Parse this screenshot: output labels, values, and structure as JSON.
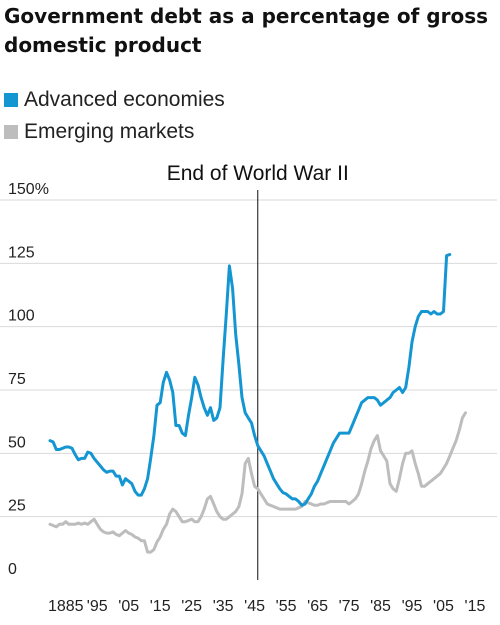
{
  "title": "Government debt as a percentage of gross domestic product",
  "legend": [
    {
      "label": "Advanced economies",
      "color": "#1496d2"
    },
    {
      "label": "Emerging markets",
      "color": "#bdbdbd"
    }
  ],
  "annotation": {
    "text": "End of World War II",
    "x": 1946
  },
  "chart_data": {
    "type": "line",
    "xlim": [
      1880,
      2022
    ],
    "ylim": [
      0,
      150
    ],
    "y_ticks": [
      {
        "value": 0,
        "label": "0"
      },
      {
        "value": 25,
        "label": "25"
      },
      {
        "value": 50,
        "label": "50"
      },
      {
        "value": 75,
        "label": "75"
      },
      {
        "value": 100,
        "label": "100"
      },
      {
        "value": 125,
        "label": "125"
      },
      {
        "value": 150,
        "label": "150%"
      }
    ],
    "x_ticks": [
      {
        "value": 1885,
        "label": "1885"
      },
      {
        "value": 1895,
        "label": "'95"
      },
      {
        "value": 1905,
        "label": "'05"
      },
      {
        "value": 1915,
        "label": "'15"
      },
      {
        "value": 1925,
        "label": "'25"
      },
      {
        "value": 1935,
        "label": "'35"
      },
      {
        "value": 1945,
        "label": "'45"
      },
      {
        "value": 1955,
        "label": "'55"
      },
      {
        "value": 1965,
        "label": "'65"
      },
      {
        "value": 1975,
        "label": "'75"
      },
      {
        "value": 1985,
        "label": "'85"
      },
      {
        "value": 1995,
        "label": "'95"
      },
      {
        "value": 2005,
        "label": "'05"
      },
      {
        "value": 2015,
        "label": "'15"
      }
    ],
    "grid": "horizontal",
    "series": [
      {
        "name": "Advanced economies",
        "color": "#1496d2",
        "points": [
          [
            1880,
            55
          ],
          [
            1881,
            54.5
          ],
          [
            1882,
            51.5
          ],
          [
            1883,
            51.5
          ],
          [
            1884,
            52
          ],
          [
            1885,
            52.5
          ],
          [
            1886,
            52.5
          ],
          [
            1887,
            52
          ],
          [
            1888,
            49.5
          ],
          [
            1889,
            47.5
          ],
          [
            1890,
            48
          ],
          [
            1891,
            48
          ],
          [
            1892,
            50.5
          ],
          [
            1893,
            50
          ],
          [
            1894,
            48
          ],
          [
            1895,
            46.5
          ],
          [
            1896,
            45
          ],
          [
            1897,
            43.5
          ],
          [
            1898,
            42.5
          ],
          [
            1899,
            43
          ],
          [
            1900,
            43
          ],
          [
            1901,
            41
          ],
          [
            1902,
            41
          ],
          [
            1903,
            37.5
          ],
          [
            1904,
            40
          ],
          [
            1905,
            39
          ],
          [
            1906,
            38
          ],
          [
            1907,
            35
          ],
          [
            1908,
            33.5
          ],
          [
            1909,
            33.5
          ],
          [
            1910,
            36
          ],
          [
            1911,
            40
          ],
          [
            1912,
            48
          ],
          [
            1913,
            57
          ],
          [
            1914,
            69
          ],
          [
            1915,
            70
          ],
          [
            1916,
            78
          ],
          [
            1917,
            82
          ],
          [
            1918,
            79
          ],
          [
            1919,
            74
          ],
          [
            1920,
            61
          ],
          [
            1921,
            61
          ],
          [
            1922,
            58
          ],
          [
            1923,
            57
          ],
          [
            1924,
            65
          ],
          [
            1925,
            72
          ],
          [
            1926,
            80
          ],
          [
            1927,
            77
          ],
          [
            1928,
            72
          ],
          [
            1929,
            68
          ],
          [
            1930,
            65
          ],
          [
            1931,
            68
          ],
          [
            1932,
            63
          ],
          [
            1933,
            64
          ],
          [
            1934,
            68
          ],
          [
            1935,
            87
          ],
          [
            1936,
            105
          ],
          [
            1937,
            124
          ],
          [
            1938,
            115
          ],
          [
            1939,
            97
          ],
          [
            1940,
            85
          ],
          [
            1941,
            72
          ],
          [
            1942,
            66
          ],
          [
            1943,
            64
          ],
          [
            1944,
            62
          ],
          [
            1945,
            57
          ],
          [
            1946,
            53
          ],
          [
            1947,
            51
          ],
          [
            1948,
            49
          ],
          [
            1949,
            46
          ],
          [
            1950,
            43
          ],
          [
            1951,
            40
          ],
          [
            1952,
            38
          ],
          [
            1953,
            36
          ],
          [
            1954,
            34.5
          ],
          [
            1955,
            34
          ],
          [
            1956,
            33
          ],
          [
            1957,
            32
          ],
          [
            1958,
            32
          ],
          [
            1959,
            31
          ],
          [
            1960,
            29.5
          ],
          [
            1961,
            30
          ],
          [
            1962,
            32
          ],
          [
            1963,
            34
          ],
          [
            1964,
            37
          ],
          [
            1965,
            39
          ],
          [
            1966,
            42
          ],
          [
            1967,
            45
          ],
          [
            1968,
            48
          ],
          [
            1969,
            51
          ],
          [
            1970,
            54
          ],
          [
            1971,
            56
          ],
          [
            1972,
            58
          ],
          [
            1973,
            58
          ],
          [
            1974,
            58
          ],
          [
            1975,
            58
          ],
          [
            1976,
            61
          ],
          [
            1977,
            64
          ],
          [
            1978,
            67
          ],
          [
            1979,
            70
          ],
          [
            1980,
            71
          ],
          [
            1981,
            72
          ],
          [
            1982,
            72
          ],
          [
            1983,
            72
          ],
          [
            1984,
            71
          ],
          [
            1985,
            69
          ],
          [
            1986,
            70
          ],
          [
            1987,
            71
          ],
          [
            1988,
            72
          ],
          [
            1989,
            74
          ],
          [
            1990,
            75
          ],
          [
            1991,
            76
          ],
          [
            1992,
            74
          ],
          [
            1993,
            76
          ],
          [
            1994,
            84
          ],
          [
            1995,
            94
          ],
          [
            1996,
            100
          ],
          [
            1997,
            104
          ],
          [
            1998,
            106
          ],
          [
            1999,
            106
          ],
          [
            2000,
            106
          ],
          [
            2001,
            105
          ],
          [
            2002,
            106
          ],
          [
            2003,
            105
          ],
          [
            2004,
            105
          ],
          [
            2005,
            106
          ],
          [
            2006,
            128
          ],
          [
            2007,
            128.5
          ]
        ]
      },
      {
        "name": "Emerging markets",
        "color": "#bdbdbd",
        "points": [
          [
            1880,
            22
          ],
          [
            1881,
            21.5
          ],
          [
            1882,
            21
          ],
          [
            1883,
            22
          ],
          [
            1884,
            22
          ],
          [
            1885,
            23
          ],
          [
            1886,
            22
          ],
          [
            1887,
            22
          ],
          [
            1888,
            22
          ],
          [
            1889,
            22.5
          ],
          [
            1890,
            22
          ],
          [
            1891,
            22.5
          ],
          [
            1892,
            22
          ],
          [
            1893,
            23
          ],
          [
            1894,
            24
          ],
          [
            1895,
            22
          ],
          [
            1896,
            20
          ],
          [
            1897,
            19
          ],
          [
            1898,
            18.5
          ],
          [
            1899,
            18.5
          ],
          [
            1900,
            19
          ],
          [
            1901,
            18
          ],
          [
            1902,
            17.5
          ],
          [
            1903,
            18.5
          ],
          [
            1904,
            19.5
          ],
          [
            1905,
            18.5
          ],
          [
            1906,
            18
          ],
          [
            1907,
            17
          ],
          [
            1908,
            16.5
          ],
          [
            1909,
            15.5
          ],
          [
            1910,
            15.5
          ],
          [
            1911,
            11
          ],
          [
            1912,
            11
          ],
          [
            1913,
            12
          ],
          [
            1914,
            15
          ],
          [
            1915,
            17
          ],
          [
            1916,
            20
          ],
          [
            1917,
            22
          ],
          [
            1918,
            26
          ],
          [
            1919,
            28
          ],
          [
            1920,
            27
          ],
          [
            1921,
            25
          ],
          [
            1922,
            23
          ],
          [
            1923,
            23
          ],
          [
            1924,
            23.5
          ],
          [
            1925,
            24
          ],
          [
            1926,
            23
          ],
          [
            1927,
            23
          ],
          [
            1928,
            25
          ],
          [
            1929,
            28
          ],
          [
            1930,
            32
          ],
          [
            1931,
            33
          ],
          [
            1932,
            30
          ],
          [
            1933,
            27
          ],
          [
            1934,
            25
          ],
          [
            1935,
            24
          ],
          [
            1936,
            24
          ],
          [
            1937,
            25
          ],
          [
            1938,
            26
          ],
          [
            1939,
            27
          ],
          [
            1940,
            29
          ],
          [
            1941,
            34
          ],
          [
            1942,
            46
          ],
          [
            1943,
            48
          ],
          [
            1944,
            42
          ],
          [
            1945,
            37
          ],
          [
            1946,
            36
          ],
          [
            1947,
            34
          ],
          [
            1948,
            32
          ],
          [
            1949,
            30
          ],
          [
            1950,
            29.5
          ],
          [
            1951,
            29
          ],
          [
            1952,
            28.5
          ],
          [
            1953,
            28
          ],
          [
            1954,
            28
          ],
          [
            1955,
            28
          ],
          [
            1956,
            28
          ],
          [
            1957,
            28
          ],
          [
            1958,
            28
          ],
          [
            1959,
            28.5
          ],
          [
            1960,
            29
          ],
          [
            1961,
            31
          ],
          [
            1962,
            30.5
          ],
          [
            1963,
            30
          ],
          [
            1964,
            29.5
          ],
          [
            1965,
            29.5
          ],
          [
            1966,
            30
          ],
          [
            1967,
            30
          ],
          [
            1968,
            30.5
          ],
          [
            1969,
            31
          ],
          [
            1970,
            31
          ],
          [
            1971,
            31
          ],
          [
            1972,
            31
          ],
          [
            1973,
            31
          ],
          [
            1974,
            31
          ],
          [
            1975,
            30
          ],
          [
            1976,
            31
          ],
          [
            1977,
            32
          ],
          [
            1978,
            34
          ],
          [
            1979,
            38
          ],
          [
            1980,
            43
          ],
          [
            1981,
            47
          ],
          [
            1982,
            52
          ],
          [
            1983,
            55
          ],
          [
            1984,
            57
          ],
          [
            1985,
            51
          ],
          [
            1986,
            49
          ],
          [
            1987,
            47
          ],
          [
            1988,
            38
          ],
          [
            1989,
            36
          ],
          [
            1990,
            35
          ],
          [
            1991,
            40
          ],
          [
            1992,
            46
          ],
          [
            1993,
            50
          ],
          [
            1994,
            50
          ],
          [
            1995,
            51
          ],
          [
            1996,
            46
          ],
          [
            1997,
            42
          ],
          [
            1998,
            37
          ],
          [
            1999,
            37
          ],
          [
            2000,
            38
          ],
          [
            2001,
            39
          ],
          [
            2002,
            40
          ],
          [
            2003,
            41
          ],
          [
            2004,
            42
          ],
          [
            2005,
            44
          ],
          [
            2006,
            46
          ],
          [
            2007,
            49
          ],
          [
            2008,
            52
          ],
          [
            2009,
            55
          ],
          [
            2010,
            59
          ],
          [
            2011,
            64
          ],
          [
            2012,
            66
          ]
        ]
      }
    ]
  }
}
